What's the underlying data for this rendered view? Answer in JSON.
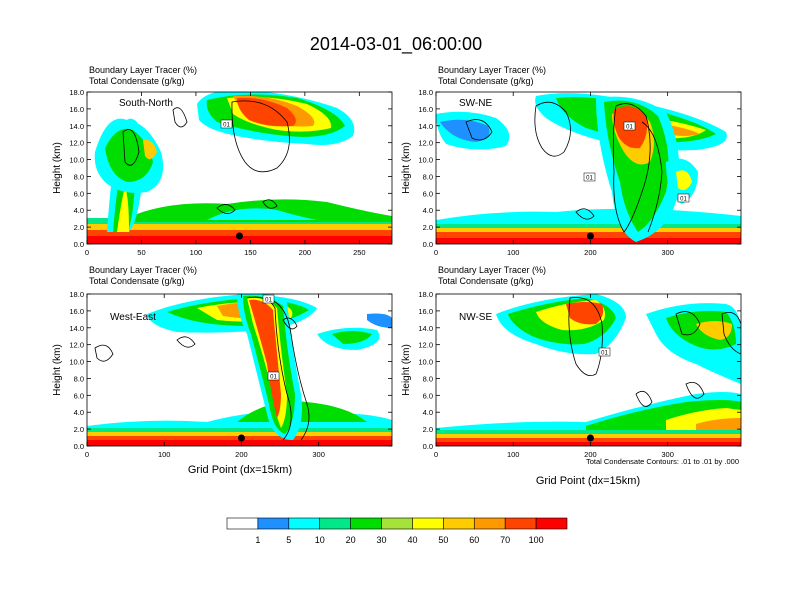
{
  "title": "2014-03-01_06:00:00",
  "panel_label_line1": "Boundary Layer Tracer   (%)",
  "panel_label_line2": "Total Condensate   (g/kg)",
  "colorbar": {
    "levels": [
      "1",
      "5",
      "10",
      "20",
      "30",
      "40",
      "50",
      "60",
      "70",
      "100"
    ],
    "colors": [
      "#ffffff",
      "#1e90ff",
      "#00ffff",
      "#00e887",
      "#00dd00",
      "#a5e33b",
      "#ffff00",
      "#ffcc00",
      "#ff9900",
      "#ff4400",
      "#ff0000"
    ]
  },
  "footnote": "Total Condensate Contours: .01 to .01 by .000",
  "contour_label": "01",
  "chart_data": [
    {
      "type": "heatmap",
      "name": "South-North",
      "ylabel": "Height (km)",
      "xlabel": "",
      "xlim": [
        0,
        280
      ],
      "ylim": [
        0,
        18
      ],
      "xticks": [
        "0",
        "50",
        "100",
        "150",
        "200",
        "250"
      ],
      "yticks": [
        "0.0",
        "2.0",
        "4.0",
        "6.0",
        "8.0",
        "10.0",
        "12.0",
        "14.0",
        "16.0",
        "18.0"
      ],
      "marker_x": 140,
      "tracer_features": [
        {
          "desc": "upper anvil",
          "x": [
            105,
            245
          ],
          "z": [
            12.0,
            18.0
          ],
          "peak_pct": 100
        },
        {
          "desc": "convective plume near x=30",
          "x": [
            25,
            45
          ],
          "z": [
            0.0,
            16.0
          ],
          "peak_pct": 50
        },
        {
          "desc": "boundary layer",
          "x": [
            0,
            280
          ],
          "z": [
            0.0,
            2.5
          ],
          "peak_pct": 100
        }
      ]
    },
    {
      "type": "heatmap",
      "name": "SW-NE",
      "ylabel": "Height (km)",
      "xlabel": "",
      "xlim": [
        0,
        395
      ],
      "ylim": [
        0,
        18
      ],
      "xticks": [
        "0",
        "100",
        "200",
        "300"
      ],
      "yticks": [
        "0.0",
        "2.0",
        "4.0",
        "6.0",
        "8.0",
        "10.0",
        "12.0",
        "14.0",
        "16.0",
        "18.0"
      ],
      "marker_x": 200,
      "tracer_features": [
        {
          "desc": "upper anvil",
          "x": [
            145,
            390
          ],
          "z": [
            10.0,
            18.0
          ],
          "peak_pct": 100
        },
        {
          "desc": "main updraft column",
          "x": [
            195,
            265
          ],
          "z": [
            2.0,
            16.0
          ],
          "peak_pct": 70
        },
        {
          "desc": "boundary layer",
          "x": [
            0,
            395
          ],
          "z": [
            0.0,
            2.0
          ],
          "peak_pct": 100
        }
      ]
    },
    {
      "type": "heatmap",
      "name": "West-East",
      "ylabel": "Height (km)",
      "xlabel": "Grid Point (dx=15km)",
      "xlim": [
        0,
        395
      ],
      "ylim": [
        0,
        18
      ],
      "xticks": [
        "0",
        "100",
        "200",
        "300"
      ],
      "yticks": [
        "0.0",
        "2.0",
        "4.0",
        "6.0",
        "8.0",
        "10.0",
        "12.0",
        "14.0",
        "16.0",
        "18.0"
      ],
      "marker_x": 200,
      "tracer_features": [
        {
          "desc": "upper anvil",
          "x": [
            80,
            310
          ],
          "z": [
            13.0,
            18.0
          ],
          "peak_pct": 100
        },
        {
          "desc": "main updraft column",
          "x": [
            200,
            245
          ],
          "z": [
            1.0,
            18.0
          ],
          "peak_pct": 100
        },
        {
          "desc": "boundary layer",
          "x": [
            0,
            395
          ],
          "z": [
            0.0,
            2.0
          ],
          "peak_pct": 100
        }
      ]
    },
    {
      "type": "heatmap",
      "name": "NW-SE",
      "ylabel": "Height (km)",
      "xlabel": "Grid Point (dx=15km)",
      "xlim": [
        0,
        395
      ],
      "ylim": [
        0,
        18
      ],
      "xticks": [
        "0",
        "100",
        "200",
        "300"
      ],
      "yticks": [
        "0.0",
        "2.0",
        "4.0",
        "6.0",
        "8.0",
        "10.0",
        "12.0",
        "14.0",
        "16.0",
        "18.0"
      ],
      "marker_x": 200,
      "tracer_features": [
        {
          "desc": "upper anvil",
          "x": [
            80,
            235
          ],
          "z": [
            10.5,
            18.0
          ],
          "peak_pct": 100
        },
        {
          "desc": "eastern cloud mass",
          "x": [
            280,
            395
          ],
          "z": [
            0.5,
            16.5
          ],
          "peak_pct": 70
        },
        {
          "desc": "boundary layer",
          "x": [
            0,
            395
          ],
          "z": [
            0.0,
            1.5
          ],
          "peak_pct": 100
        }
      ]
    }
  ]
}
